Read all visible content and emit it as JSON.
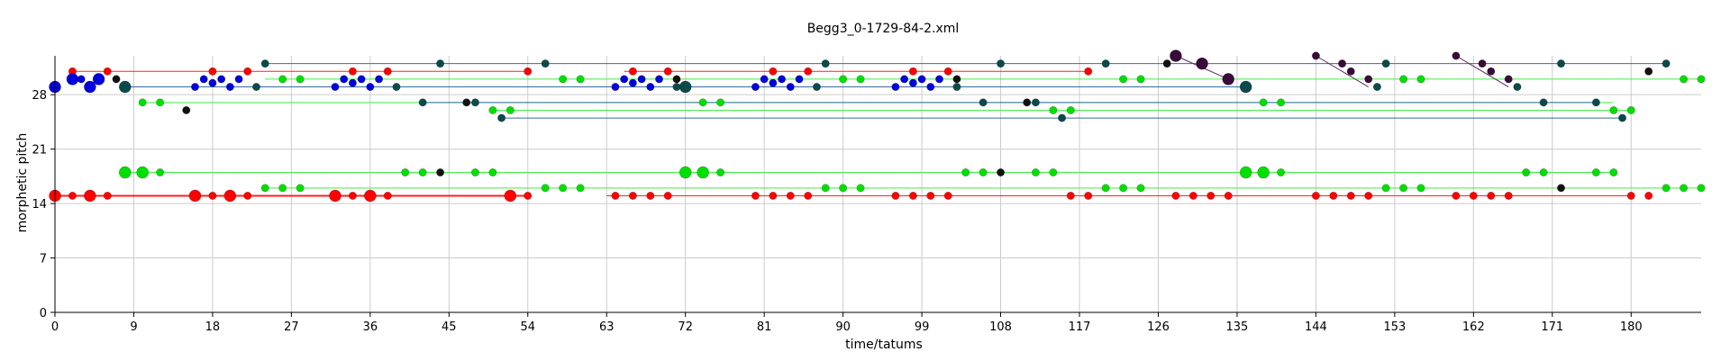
{
  "chart_data": {
    "type": "scatter",
    "title": "Begg3_0-1729-84-2.xml",
    "xlabel": "time/tatums",
    "ylabel": "morphetic pitch",
    "xlim": [
      0,
      188
    ],
    "ylim": [
      0,
      33
    ],
    "xticks": [
      0,
      9,
      18,
      27,
      36,
      45,
      54,
      63,
      72,
      81,
      90,
      99,
      108,
      117,
      126,
      135,
      144,
      153,
      162,
      171,
      180
    ],
    "yticks": [
      0,
      7,
      14,
      21,
      28
    ],
    "grid": true,
    "colors": {
      "red": "#ff0000",
      "green": "#00e000",
      "blue": "#0000dd",
      "teal": "#0a4a4a",
      "black": "#111111",
      "purple": "#3a0a3a",
      "line_blue": "#3a6aa0",
      "line_green": "#44ee44",
      "line_red": "#ff2020",
      "line_purple": "#5a2a5a"
    },
    "segments": [
      {
        "color": "line_red",
        "x1": 0,
        "x2": 54,
        "y": 15,
        "w": 2
      },
      {
        "color": "line_red",
        "x1": 63,
        "x2": 180,
        "y": 15,
        "w": 1
      },
      {
        "color": "line_red",
        "x1": 2,
        "x2": 54,
        "y": 31,
        "w": 1
      },
      {
        "color": "line_red",
        "x1": 65,
        "x2": 118,
        "y": 31,
        "w": 1
      },
      {
        "color": "line_green",
        "x1": 8,
        "x2": 178,
        "y": 18,
        "w": 1
      },
      {
        "color": "line_green",
        "x1": 24,
        "x2": 188,
        "y": 16,
        "w": 1
      },
      {
        "color": "line_green",
        "x1": 24,
        "x2": 188,
        "y": 30,
        "w": 1
      },
      {
        "color": "line_green",
        "x1": 10,
        "x2": 178,
        "y": 27,
        "w": 1
      },
      {
        "color": "line_green",
        "x1": 50,
        "x2": 180,
        "y": 26,
        "w": 1
      },
      {
        "color": "line_blue",
        "x1": 24,
        "x2": 184,
        "y": 32,
        "w": 1
      },
      {
        "color": "line_blue",
        "x1": 8,
        "x2": 136,
        "y": 29,
        "w": 1
      },
      {
        "color": "line_blue",
        "x1": 42,
        "x2": 176,
        "y": 27,
        "w": 1
      },
      {
        "color": "line_blue",
        "x1": 51,
        "x2": 179,
        "y": 25,
        "w": 1
      },
      {
        "color": "line_purple",
        "x1": 128,
        "x2": 134,
        "y": 33,
        "w": 1,
        "y2": 30
      },
      {
        "color": "line_purple",
        "x1": 144,
        "x2": 150,
        "y": 33,
        "w": 1,
        "y2": 29
      },
      {
        "color": "line_purple",
        "x1": 160,
        "x2": 166,
        "y": 33,
        "w": 1,
        "y2": 29
      }
    ],
    "notes": [
      {
        "color": "red",
        "size": "l",
        "points": [
          [
            0,
            15
          ],
          [
            4,
            15
          ],
          [
            16,
            15
          ],
          [
            20,
            15
          ],
          [
            32,
            15
          ],
          [
            36,
            15
          ],
          [
            52,
            15
          ]
        ]
      },
      {
        "color": "red",
        "size": "s",
        "points": [
          [
            2,
            15
          ],
          [
            6,
            15
          ],
          [
            18,
            15
          ],
          [
            22,
            15
          ],
          [
            34,
            15
          ],
          [
            38,
            15
          ],
          [
            54,
            15
          ],
          [
            64,
            15
          ],
          [
            66,
            15
          ],
          [
            68,
            15
          ],
          [
            70,
            15
          ],
          [
            80,
            15
          ],
          [
            82,
            15
          ],
          [
            84,
            15
          ],
          [
            86,
            15
          ],
          [
            96,
            15
          ],
          [
            98,
            15
          ],
          [
            100,
            15
          ],
          [
            102,
            15
          ],
          [
            116,
            15
          ],
          [
            118,
            15
          ],
          [
            128,
            15
          ],
          [
            130,
            15
          ],
          [
            132,
            15
          ],
          [
            134,
            15
          ],
          [
            144,
            15
          ],
          [
            146,
            15
          ],
          [
            148,
            15
          ],
          [
            150,
            15
          ],
          [
            160,
            15
          ],
          [
            162,
            15
          ],
          [
            164,
            15
          ],
          [
            166,
            15
          ],
          [
            180,
            15
          ],
          [
            182,
            15
          ]
        ]
      },
      {
        "color": "red",
        "size": "s",
        "points": [
          [
            2,
            31
          ],
          [
            6,
            31
          ],
          [
            18,
            31
          ],
          [
            22,
            31
          ],
          [
            34,
            31
          ],
          [
            38,
            31
          ],
          [
            54,
            31
          ],
          [
            66,
            31
          ],
          [
            70,
            31
          ],
          [
            82,
            31
          ],
          [
            86,
            31
          ],
          [
            98,
            31
          ],
          [
            102,
            31
          ],
          [
            118,
            31
          ]
        ]
      },
      {
        "color": "green",
        "size": "l",
        "points": [
          [
            8,
            18
          ],
          [
            10,
            18
          ],
          [
            72,
            18
          ],
          [
            74,
            18
          ],
          [
            136,
            18
          ],
          [
            138,
            18
          ]
        ]
      },
      {
        "color": "green",
        "size": "s",
        "points": [
          [
            12,
            18
          ],
          [
            40,
            18
          ],
          [
            42,
            18
          ],
          [
            48,
            18
          ],
          [
            50,
            18
          ],
          [
            76,
            18
          ],
          [
            104,
            18
          ],
          [
            106,
            18
          ],
          [
            112,
            18
          ],
          [
            114,
            18
          ],
          [
            140,
            18
          ],
          [
            168,
            18
          ],
          [
            170,
            18
          ],
          [
            176,
            18
          ],
          [
            178,
            18
          ]
        ]
      },
      {
        "color": "green",
        "size": "s",
        "points": [
          [
            24,
            16
          ],
          [
            26,
            16
          ],
          [
            28,
            16
          ],
          [
            56,
            16
          ],
          [
            58,
            16
          ],
          [
            60,
            16
          ],
          [
            88,
            16
          ],
          [
            90,
            16
          ],
          [
            92,
            16
          ],
          [
            120,
            16
          ],
          [
            122,
            16
          ],
          [
            124,
            16
          ],
          [
            152,
            16
          ],
          [
            154,
            16
          ],
          [
            156,
            16
          ],
          [
            184,
            16
          ],
          [
            186,
            16
          ],
          [
            188,
            16
          ]
        ]
      },
      {
        "color": "green",
        "size": "s",
        "points": [
          [
            26,
            30
          ],
          [
            28,
            30
          ],
          [
            58,
            30
          ],
          [
            60,
            30
          ],
          [
            90,
            30
          ],
          [
            92,
            30
          ],
          [
            122,
            30
          ],
          [
            124,
            30
          ],
          [
            154,
            30
          ],
          [
            156,
            30
          ],
          [
            186,
            30
          ],
          [
            188,
            30
          ]
        ]
      },
      {
        "color": "green",
        "size": "s",
        "points": [
          [
            10,
            27
          ],
          [
            12,
            27
          ],
          [
            74,
            27
          ],
          [
            76,
            27
          ],
          [
            138,
            27
          ],
          [
            140,
            27
          ]
        ]
      },
      {
        "color": "green",
        "size": "s",
        "points": [
          [
            50,
            26
          ],
          [
            52,
            26
          ],
          [
            114,
            26
          ],
          [
            116,
            26
          ],
          [
            178,
            26
          ],
          [
            180,
            26
          ]
        ]
      },
      {
        "color": "blue",
        "size": "l",
        "points": [
          [
            0,
            29
          ],
          [
            2,
            30
          ],
          [
            4,
            29
          ],
          [
            5,
            30
          ]
        ]
      },
      {
        "color": "blue",
        "size": "s",
        "points": [
          [
            3,
            30
          ],
          [
            16,
            29
          ],
          [
            17,
            30
          ],
          [
            18,
            29.5
          ],
          [
            19,
            30
          ],
          [
            20,
            29
          ],
          [
            21,
            30
          ],
          [
            32,
            29
          ],
          [
            33,
            30
          ],
          [
            34,
            29.5
          ],
          [
            35,
            30
          ],
          [
            36,
            29
          ],
          [
            37,
            30
          ],
          [
            64,
            29
          ],
          [
            65,
            30
          ],
          [
            66,
            29.5
          ],
          [
            67,
            30
          ],
          [
            68,
            29
          ],
          [
            69,
            30
          ],
          [
            80,
            29
          ],
          [
            81,
            30
          ],
          [
            82,
            29.5
          ],
          [
            83,
            30
          ],
          [
            84,
            29
          ],
          [
            85,
            30
          ],
          [
            96,
            29
          ],
          [
            97,
            30
          ],
          [
            98,
            29.5
          ],
          [
            99,
            30
          ],
          [
            100,
            29
          ],
          [
            101,
            30
          ]
        ]
      },
      {
        "color": "teal",
        "size": "l",
        "points": [
          [
            8,
            29
          ],
          [
            72,
            29
          ],
          [
            136,
            29
          ]
        ]
      },
      {
        "color": "teal",
        "size": "s",
        "points": [
          [
            23,
            29
          ],
          [
            24,
            32
          ],
          [
            39,
            29
          ],
          [
            44,
            32
          ],
          [
            42,
            27
          ],
          [
            48,
            27
          ],
          [
            51,
            25
          ],
          [
            56,
            32
          ],
          [
            71,
            29
          ],
          [
            88,
            32
          ],
          [
            87,
            29
          ],
          [
            103,
            29
          ],
          [
            106,
            27
          ],
          [
            112,
            27
          ],
          [
            115,
            25
          ],
          [
            108,
            32
          ],
          [
            120,
            32
          ],
          [
            152,
            32
          ],
          [
            151,
            29
          ],
          [
            167,
            29
          ],
          [
            170,
            27
          ],
          [
            176,
            27
          ],
          [
            179,
            25
          ],
          [
            172,
            32
          ],
          [
            184,
            32
          ]
        ]
      },
      {
        "color": "black",
        "size": "s",
        "points": [
          [
            7,
            30
          ],
          [
            15,
            26
          ],
          [
            44,
            18
          ],
          [
            47,
            27
          ],
          [
            71,
            30
          ],
          [
            103,
            30
          ],
          [
            108,
            18
          ],
          [
            111,
            27
          ],
          [
            127,
            32
          ],
          [
            172,
            16
          ],
          [
            182,
            31
          ]
        ]
      },
      {
        "color": "purple",
        "size": "l",
        "points": [
          [
            128,
            33
          ],
          [
            131,
            32
          ],
          [
            134,
            30
          ]
        ]
      },
      {
        "color": "purple",
        "size": "s",
        "points": [
          [
            144,
            33
          ],
          [
            147,
            32
          ],
          [
            148,
            31
          ],
          [
            150,
            30
          ],
          [
            160,
            33
          ],
          [
            163,
            32
          ],
          [
            164,
            31
          ],
          [
            166,
            30
          ]
        ]
      }
    ]
  }
}
